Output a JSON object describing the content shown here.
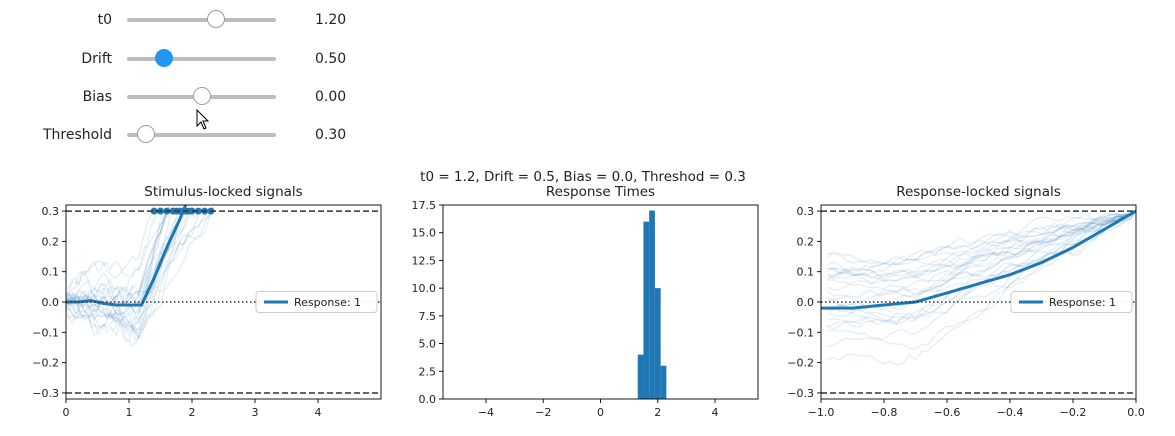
{
  "sliders": [
    {
      "label": "t0",
      "display": "1.20",
      "value": 1.2,
      "min": 0,
      "max": 2,
      "active": false
    },
    {
      "label": "Drift",
      "display": "0.50",
      "value": 0.5,
      "min": 0,
      "max": 2,
      "active": true
    },
    {
      "label": "Bias",
      "display": "0.00",
      "value": 0.0,
      "min": -1,
      "max": 1,
      "active": false
    },
    {
      "label": "Threshold",
      "display": "0.30",
      "value": 0.3,
      "min": 0.2,
      "max": 1,
      "active": false
    }
  ],
  "figure": {
    "suptitle": "t0 = 1.2, Drift = 0.5, Bias = 0.0, Threshod = 0.3"
  },
  "colors": {
    "series": "#1f77b4",
    "thumb_active": "#2196f3",
    "threshold_line": "#333333"
  },
  "chart_data": [
    {
      "type": "line",
      "title": "Stimulus-locked signals",
      "xlim": [
        0,
        5
      ],
      "ylim": [
        -0.32,
        0.32
      ],
      "xticks": [
        0,
        1,
        2,
        3,
        4
      ],
      "yticks": [
        -0.3,
        -0.2,
        -0.1,
        0.0,
        0.1,
        0.2,
        0.3
      ],
      "ytick_labels": [
        "−0.3",
        "−0.2",
        "−0.1",
        "0.0",
        "0.1",
        "0.2",
        "0.3"
      ],
      "xtick_labels": [
        "0",
        "1",
        "2",
        "3",
        "4"
      ],
      "threshold": 0.3,
      "baseline": 0.0,
      "legend": {
        "label": "Response: 1",
        "placement": "center-right"
      },
      "series": [
        {
          "x": [
            0,
            0.2,
            0.4,
            0.6,
            0.8,
            1.0,
            1.2,
            1.4,
            1.6,
            1.8,
            1.9
          ],
          "y": [
            0.0,
            0.0,
            0.005,
            -0.005,
            -0.01,
            -0.01,
            -0.01,
            0.08,
            0.18,
            0.27,
            0.32
          ]
        }
      ],
      "hit_points_x": [
        1.4,
        1.5,
        1.6,
        1.7,
        1.75,
        1.8,
        1.85,
        1.9,
        1.95,
        2.0,
        2.1,
        2.2,
        2.3
      ]
    },
    {
      "type": "bar",
      "title": "Response Times",
      "xlim": [
        -5.5,
        5.5
      ],
      "ylim": [
        0,
        17.5
      ],
      "xticks": [
        -4,
        -2,
        0,
        2,
        4
      ],
      "xtick_labels": [
        "−4",
        "−2",
        "0",
        "2",
        "4"
      ],
      "yticks": [
        0.0,
        2.5,
        5.0,
        7.5,
        10.0,
        12.5,
        15.0,
        17.5
      ],
      "ytick_labels": [
        "0.0",
        "2.5",
        "5.0",
        "7.5",
        "10.0",
        "12.5",
        "15.0",
        "17.5"
      ],
      "bins": [
        {
          "x0": 1.3,
          "x1": 1.5,
          "count": 4
        },
        {
          "x0": 1.5,
          "x1": 1.7,
          "count": 16
        },
        {
          "x0": 1.7,
          "x1": 1.9,
          "count": 17
        },
        {
          "x0": 1.9,
          "x1": 2.1,
          "count": 10
        },
        {
          "x0": 2.1,
          "x1": 2.3,
          "count": 3
        }
      ]
    },
    {
      "type": "line",
      "title": "Response-locked signals",
      "xlim": [
        -1.0,
        0.0
      ],
      "ylim": [
        -0.32,
        0.32
      ],
      "xticks": [
        -1.0,
        -0.8,
        -0.6,
        -0.4,
        -0.2,
        0.0
      ],
      "xtick_labels": [
        "−1.0",
        "−0.8",
        "−0.6",
        "−0.4",
        "−0.2",
        "0.0"
      ],
      "yticks": [
        -0.3,
        -0.2,
        -0.1,
        0.0,
        0.1,
        0.2,
        0.3
      ],
      "ytick_labels": [
        "−0.3",
        "−0.2",
        "−0.1",
        "0.0",
        "0.1",
        "0.2",
        "0.3"
      ],
      "threshold": 0.3,
      "baseline": 0.0,
      "legend": {
        "label": "Response: 1",
        "placement": "center-right"
      },
      "series": [
        {
          "x": [
            -1.0,
            -0.9,
            -0.8,
            -0.7,
            -0.6,
            -0.5,
            -0.4,
            -0.3,
            -0.2,
            -0.1,
            0.0
          ],
          "y": [
            -0.02,
            -0.02,
            -0.01,
            0.0,
            0.03,
            0.06,
            0.09,
            0.13,
            0.18,
            0.24,
            0.3
          ]
        }
      ]
    }
  ]
}
